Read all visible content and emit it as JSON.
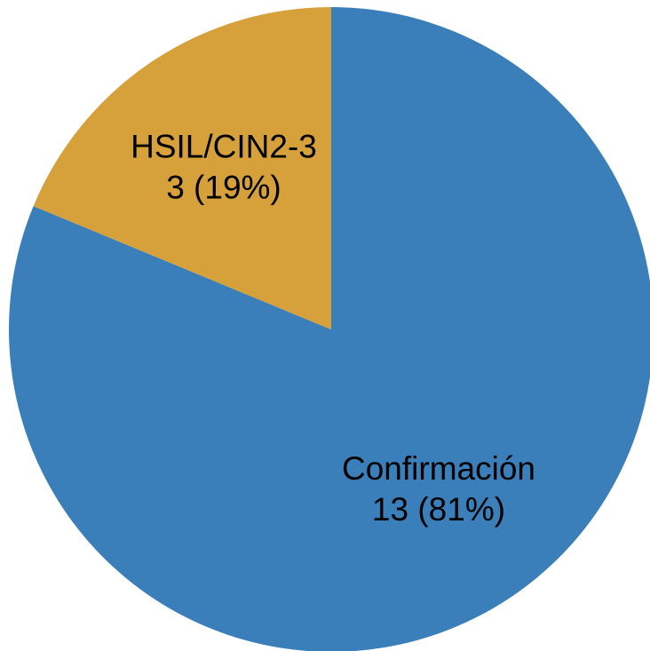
{
  "chart_data": {
    "type": "pie",
    "categories": [
      "Confirmación",
      "HSIL/CIN2-3"
    ],
    "values": [
      13,
      3
    ],
    "value_labels": [
      "13 (81%)",
      "3 (19%)"
    ],
    "colors": [
      "#3a7fba",
      "#d6a03a"
    ]
  }
}
